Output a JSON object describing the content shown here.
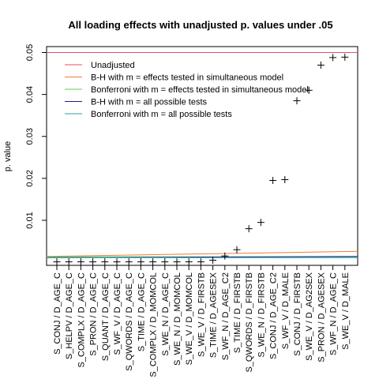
{
  "chart_data": {
    "type": "scatter",
    "title": "All loading effects with unadjusted p. values under .05",
    "xlabel": "",
    "ylabel": "p. value",
    "ylim": [
      0,
      0.05
    ],
    "yticks": [
      0.01,
      0.02,
      0.03,
      0.04,
      0.05
    ],
    "ytick_labels": [
      "0.01",
      "0.02",
      "0.03",
      "0.04",
      "0.05"
    ],
    "grid": false,
    "legend_position": "top-left",
    "categories": [
      "S_CONJ / D_AGE_C",
      "S_HELPV / D_AGE_C",
      "S_COMPLX / D_AGE_C",
      "S_PRON / D_AGE_C",
      "S_QUANT / D_AGE_C",
      "S_WF_V / D_AGE_C",
      "S_QWORDS / D_AGE_C",
      "S_TIME / D_AGE_C",
      "S_COMPLX / D_MOMCOL",
      "S_WE_N / D_AGE_C",
      "S_WE_N / D_MOMCOL",
      "S_WE_V / D_MOMCOL",
      "S_WE_V / D_FIRSTB",
      "S_TIME / D_AGESEX",
      "S_WF_N / D_AGE_C2",
      "S_TIME / D_FIRSTB",
      "S_QWORDS / D_FIRSTB",
      "S_WE_N / D_FIRSTB",
      "S_CONJ / D_AGE_C2",
      "S_WF_V / D_MALE",
      "S_CONJ / D_FIRSTB",
      "S_WE_V / D_AG2SEX",
      "S_PRON / D_AGESEX",
      "S_WF_N / D_AGE_C",
      "S_WE_V / D_MALE"
    ],
    "series": [
      {
        "marker": "+",
        "color": "#000000",
        "values": [
          0.0001,
          0.0001,
          0.0001,
          0.0001,
          0.0001,
          0.0001,
          0.0001,
          0.0001,
          0.0001,
          0.0001,
          0.0001,
          0.0001,
          0.0001,
          0.0005,
          0.0015,
          0.003,
          0.008,
          0.0095,
          0.0195,
          0.0197,
          0.0385,
          0.041,
          0.047,
          0.0488,
          0.0489
        ]
      }
    ],
    "threshold_lines": [
      {
        "name": "Unadjusted",
        "color": "#df536b",
        "values": [
          0.05,
          0.05
        ]
      },
      {
        "name": "B-H with m = effects tested in simultaneous model",
        "color": "#ed7d31",
        "values": [
          0.0014,
          0.0026
        ]
      },
      {
        "name": "Bonferroni with m = effects tested in simultaneous model",
        "color": "#61d04f",
        "values": [
          0.0013,
          0.0013
        ]
      },
      {
        "name": "B-H with m = all possible tests",
        "color": "#1c1c8c",
        "values": [
          0.0011,
          0.0014
        ]
      },
      {
        "name": "Bonferroni with m = all possible tests",
        "color": "#28a0a8",
        "values": [
          0.0011,
          0.0011
        ]
      }
    ]
  }
}
